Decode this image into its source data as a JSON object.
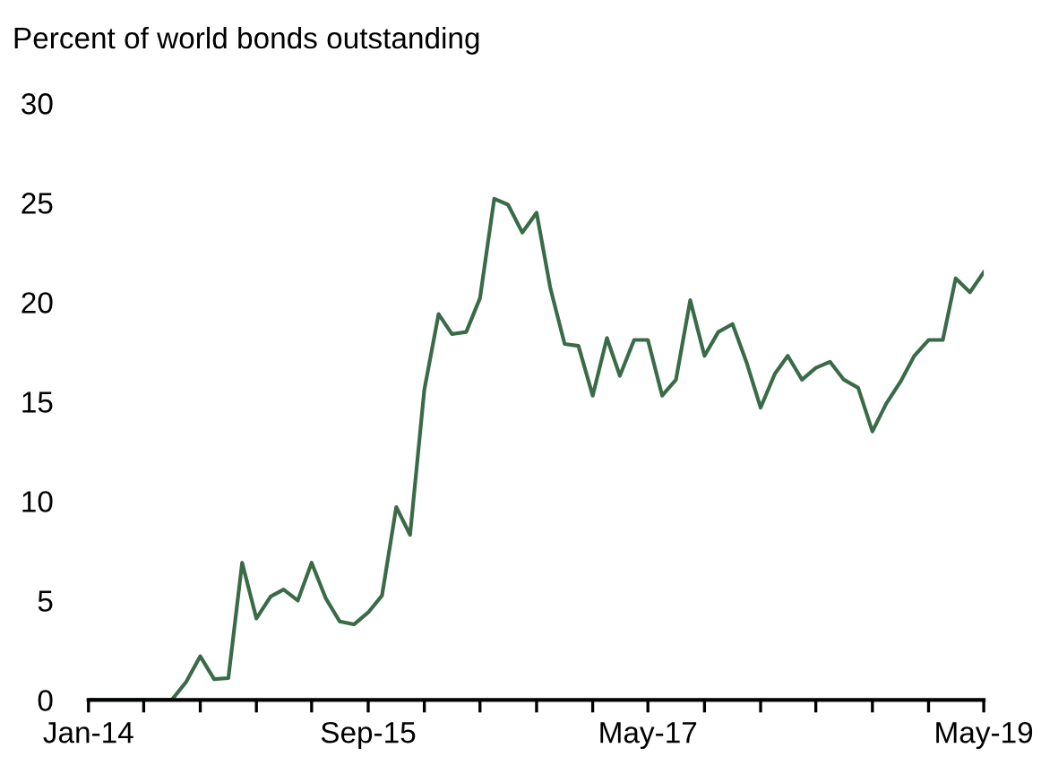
{
  "chart_data": {
    "type": "line",
    "ylabel": "Percent of world bonds outstanding",
    "x": [
      "2014-01",
      "2014-02",
      "2014-03",
      "2014-04",
      "2014-05",
      "2014-06",
      "2014-07",
      "2014-08",
      "2014-09",
      "2014-10",
      "2014-11",
      "2014-12",
      "2015-01",
      "2015-02",
      "2015-03",
      "2015-04",
      "2015-05",
      "2015-06",
      "2015-07",
      "2015-08",
      "2015-09",
      "2015-10",
      "2015-11",
      "2015-12",
      "2016-01",
      "2016-02",
      "2016-03",
      "2016-04",
      "2016-05",
      "2016-06",
      "2016-07",
      "2016-08",
      "2016-09",
      "2016-10",
      "2016-11",
      "2016-12",
      "2017-01",
      "2017-02",
      "2017-03",
      "2017-04",
      "2017-05",
      "2017-06",
      "2017-07",
      "2017-08",
      "2017-09",
      "2017-10",
      "2017-11",
      "2017-12",
      "2018-01",
      "2018-02",
      "2018-03",
      "2018-04",
      "2018-05",
      "2018-06",
      "2018-07",
      "2018-08",
      "2018-09",
      "2018-10",
      "2018-11",
      "2018-12",
      "2019-01",
      "2019-02",
      "2019-03",
      "2019-04",
      "2019-05"
    ],
    "series": [
      {
        "color": "#3a6b47",
        "values": [
          0,
          0,
          0,
          0,
          0,
          0,
          0,
          0.9,
          2.2,
          1.05,
          1.1,
          6.9,
          4.1,
          5.2,
          5.55,
          5.0,
          6.9,
          5.1,
          3.95,
          3.8,
          4.4,
          5.25,
          9.7,
          8.3,
          15.6,
          19.4,
          18.4,
          18.5,
          20.2,
          25.2,
          24.9,
          23.5,
          24.5,
          20.7,
          17.9,
          17.8,
          15.3,
          18.2,
          16.3,
          18.1,
          18.1,
          15.3,
          16.1,
          20.1,
          17.3,
          18.5,
          18.9,
          17.0,
          14.7,
          16.4,
          17.3,
          16.1,
          16.7,
          17.0,
          16.1,
          15.7,
          13.5,
          14.9,
          16.0,
          17.3,
          18.1,
          18.1,
          21.2,
          20.5,
          21.5
        ]
      }
    ],
    "xlim": [
      "2014-01",
      "2019-05"
    ],
    "xticks": [
      {
        "value": "2014-01",
        "label": "Jan-14"
      },
      {
        "value": "2014-05",
        "label": null
      },
      {
        "value": "2014-09",
        "label": null
      },
      {
        "value": "2015-01",
        "label": null
      },
      {
        "value": "2015-05",
        "label": null
      },
      {
        "value": "2015-09",
        "label": "Sep-15"
      },
      {
        "value": "2016-01",
        "label": null
      },
      {
        "value": "2016-05",
        "label": null
      },
      {
        "value": "2016-09",
        "label": null
      },
      {
        "value": "2017-01",
        "label": null
      },
      {
        "value": "2017-05",
        "label": "May-17"
      },
      {
        "value": "2017-09",
        "label": null
      },
      {
        "value": "2018-01",
        "label": null
      },
      {
        "value": "2018-05",
        "label": null
      },
      {
        "value": "2018-09",
        "label": null
      },
      {
        "value": "2019-01",
        "label": null
      },
      {
        "value": "2019-05",
        "label": "May-19"
      }
    ],
    "ylim": [
      0,
      30
    ],
    "yticks": [
      0,
      5,
      10,
      15,
      20,
      25,
      30
    ],
    "grid": false,
    "legend": false,
    "marker": "none",
    "line_style": "solid"
  }
}
